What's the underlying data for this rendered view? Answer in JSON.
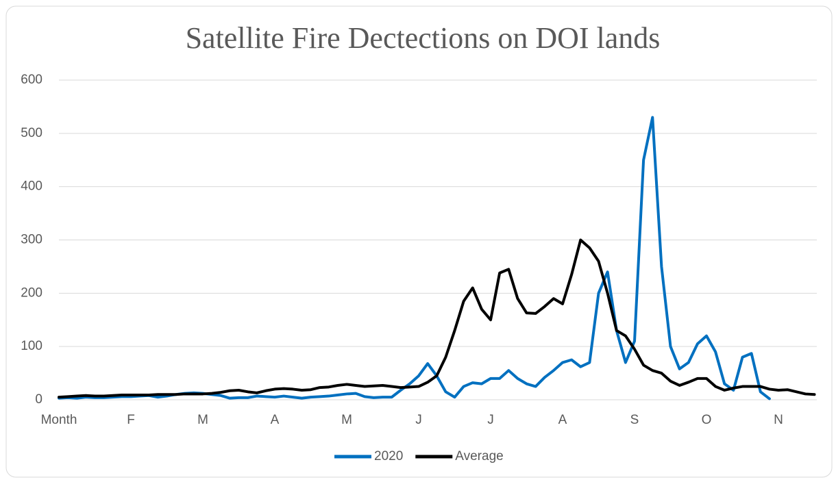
{
  "chart_data": {
    "type": "line",
    "title": "Satellite Fire Dectections on DOI lands",
    "categories": [
      "Month",
      null,
      null,
      null,
      null,
      null,
      null,
      null,
      "F",
      null,
      null,
      null,
      null,
      null,
      null,
      null,
      "M",
      null,
      null,
      null,
      null,
      null,
      null,
      null,
      "A",
      null,
      null,
      null,
      null,
      null,
      null,
      null,
      "M",
      null,
      null,
      null,
      null,
      null,
      null,
      null,
      "J",
      null,
      null,
      null,
      null,
      null,
      null,
      null,
      "J",
      null,
      null,
      null,
      null,
      null,
      null,
      null,
      "A",
      null,
      null,
      null,
      null,
      null,
      null,
      null,
      "S",
      null,
      null,
      null,
      null,
      null,
      null,
      null,
      "O",
      null,
      null,
      null,
      null,
      null,
      null,
      null,
      "N",
      null,
      null,
      null,
      null
    ],
    "series": [
      {
        "name": "2020",
        "color": "#0070c0",
        "values": [
          3,
          4,
          3,
          5,
          4,
          4,
          5,
          6,
          6,
          7,
          8,
          5,
          7,
          10,
          12,
          13,
          12,
          10,
          8,
          3,
          4,
          4,
          7,
          6,
          5,
          7,
          5,
          3,
          5,
          6,
          7,
          9,
          11,
          12,
          6,
          4,
          5,
          5,
          18,
          30,
          45,
          68,
          45,
          15,
          5,
          25,
          32,
          30,
          40,
          40,
          55,
          40,
          30,
          25,
          42,
          55,
          70,
          75,
          62,
          70,
          200,
          240,
          130,
          70,
          110,
          450,
          530,
          250,
          100,
          58,
          70,
          105,
          120,
          90,
          30,
          18,
          80,
          87,
          15,
          2,
          null,
          null,
          null,
          null,
          null
        ]
      },
      {
        "name": "Average",
        "color": "#000000",
        "values": [
          5,
          6,
          7,
          8,
          7,
          7,
          8,
          9,
          9,
          9,
          9,
          10,
          10,
          10,
          11,
          11,
          11,
          12,
          14,
          17,
          18,
          15,
          13,
          17,
          20,
          21,
          20,
          18,
          19,
          23,
          24,
          27,
          29,
          27,
          25,
          26,
          27,
          25,
          23,
          24,
          25,
          33,
          45,
          80,
          130,
          185,
          210,
          170,
          150,
          238,
          245,
          190,
          163,
          162,
          175,
          190,
          180,
          235,
          300,
          285,
          260,
          200,
          130,
          120,
          95,
          65,
          55,
          50,
          35,
          27,
          33,
          40,
          40,
          25,
          18,
          22,
          25,
          25,
          25,
          20,
          18,
          19,
          15,
          11,
          10
        ]
      }
    ],
    "ylim": [
      0,
      600
    ],
    "yticks": [
      0,
      100,
      200,
      300,
      400,
      500,
      600
    ],
    "grid": true,
    "legend": "bottom"
  }
}
